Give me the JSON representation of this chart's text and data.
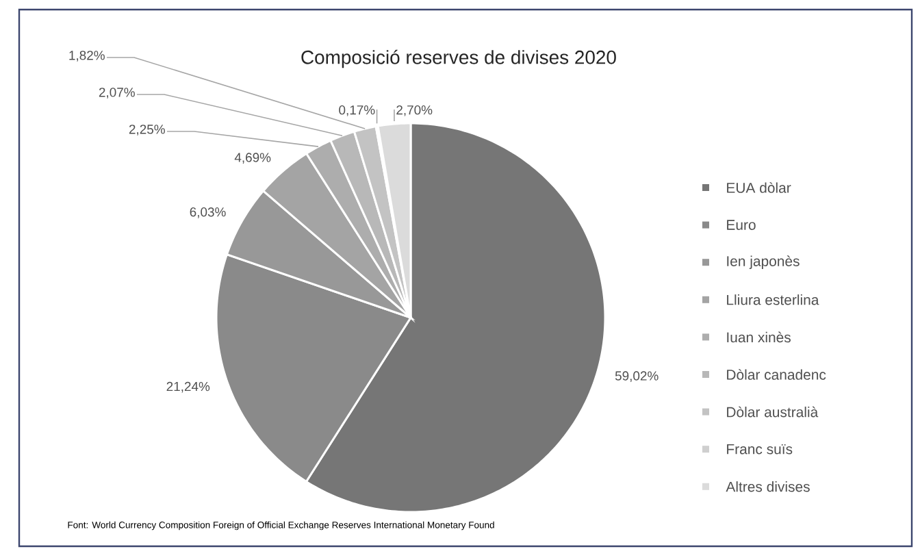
{
  "chart_data": {
    "type": "pie",
    "title": "Composició reserves de divises 2020",
    "categories": [
      "EUA dòlar",
      "Euro",
      "Ien japonès",
      "Lliura esterlina",
      "Iuan xinès",
      "Dòlar canadenc",
      "Dòlar australià",
      "Franc suïs",
      "Altres divises"
    ],
    "values": [
      59.02,
      21.24,
      6.03,
      4.69,
      2.25,
      2.07,
      1.82,
      0.17,
      2.7
    ],
    "value_labels": [
      "59,02%",
      "21,24%",
      "6,03%",
      "4,69%",
      "2,25%",
      "2,07%",
      "1,82%",
      "0,17%",
      "2,70%"
    ],
    "colors": [
      "#767676",
      "#8a8a8a",
      "#989898",
      "#a4a4a4",
      "#adadad",
      "#b8b8b8",
      "#c3c3c3",
      "#cfcfcf",
      "#dbdbdb"
    ],
    "legend": "right",
    "annotations": [
      "Font: World Currency Composition Foreign of Official Exchange Reserves International Monetary Found"
    ]
  }
}
